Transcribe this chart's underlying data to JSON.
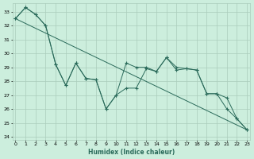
{
  "xlabel": "Humidex (Indice chaleur)",
  "bg_color": "#cceedd",
  "grid_color": "#aaccbb",
  "line_color": "#2a6a5a",
  "x_ticks": [
    0,
    1,
    2,
    3,
    4,
    5,
    6,
    7,
    8,
    9,
    10,
    11,
    12,
    13,
    14,
    15,
    16,
    17,
    18,
    19,
    20,
    21,
    22,
    23
  ],
  "ylim": [
    23.8,
    33.6
  ],
  "xlim": [
    -0.3,
    23.3
  ],
  "yticks": [
    24,
    25,
    26,
    27,
    28,
    29,
    30,
    31,
    32,
    33
  ],
  "line1_x": [
    0,
    1,
    2,
    3,
    4,
    5,
    6,
    7,
    8,
    9,
    10,
    11,
    12,
    13,
    14,
    15,
    16,
    17,
    18,
    19,
    20,
    21,
    22,
    23
  ],
  "line1_y": [
    32.5,
    33.3,
    32.8,
    32.0,
    29.2,
    27.7,
    29.3,
    28.2,
    28.1,
    26.0,
    27.0,
    29.3,
    29.0,
    29.0,
    28.7,
    29.7,
    29.0,
    28.9,
    28.8,
    27.1,
    27.1,
    26.0,
    25.3,
    24.5
  ],
  "line2_x": [
    0,
    1,
    2,
    3,
    4,
    5,
    6,
    7,
    8,
    9,
    10,
    11,
    12,
    13,
    14,
    15,
    16,
    17,
    18,
    19,
    20,
    21,
    22,
    23
  ],
  "line2_y": [
    32.5,
    33.3,
    32.8,
    32.0,
    29.2,
    27.7,
    29.3,
    28.2,
    28.1,
    26.0,
    27.0,
    27.5,
    27.5,
    28.9,
    28.7,
    29.7,
    28.8,
    28.9,
    28.8,
    27.1,
    27.1,
    26.8,
    25.3,
    24.5
  ],
  "line3_x": [
    0,
    23
  ],
  "line3_y": [
    32.5,
    24.5
  ]
}
